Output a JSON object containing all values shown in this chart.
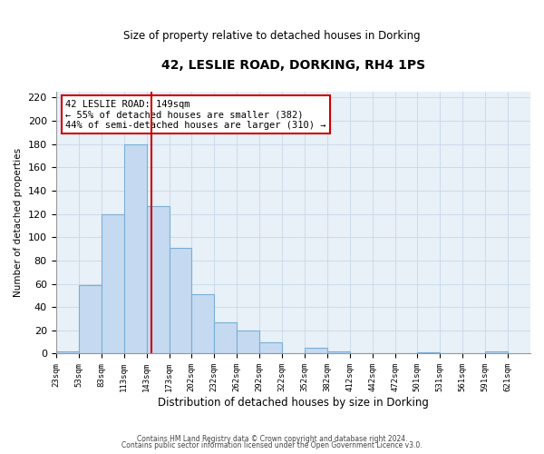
{
  "title": "42, LESLIE ROAD, DORKING, RH4 1PS",
  "subtitle": "Size of property relative to detached houses in Dorking",
  "xlabel": "Distribution of detached houses by size in Dorking",
  "ylabel": "Number of detached properties",
  "bar_left_edges": [
    23,
    53,
    83,
    113,
    143,
    173,
    202,
    232,
    262,
    292,
    322,
    352,
    382,
    412,
    442,
    472,
    501,
    531,
    561,
    591
  ],
  "bar_widths": [
    30,
    30,
    30,
    30,
    30,
    29,
    30,
    30,
    30,
    30,
    30,
    30,
    30,
    30,
    30,
    29,
    30,
    30,
    30,
    30
  ],
  "bar_heights": [
    2,
    59,
    120,
    180,
    127,
    91,
    51,
    27,
    20,
    10,
    0,
    5,
    2,
    0,
    0,
    0,
    1,
    0,
    0,
    2
  ],
  "bar_color": "#c5daf0",
  "bar_edgecolor": "#7aaed6",
  "tick_labels": [
    "23sqm",
    "53sqm",
    "83sqm",
    "113sqm",
    "143sqm",
    "173sqm",
    "202sqm",
    "232sqm",
    "262sqm",
    "292sqm",
    "322sqm",
    "352sqm",
    "382sqm",
    "412sqm",
    "442sqm",
    "472sqm",
    "501sqm",
    "531sqm",
    "561sqm",
    "591sqm",
    "621sqm"
  ],
  "tick_positions": [
    23,
    53,
    83,
    113,
    143,
    173,
    202,
    232,
    262,
    292,
    322,
    352,
    382,
    412,
    442,
    472,
    501,
    531,
    561,
    591,
    621
  ],
  "vline_x": 149,
  "vline_color": "#cc0000",
  "xlim": [
    23,
    651
  ],
  "ylim": [
    0,
    225
  ],
  "yticks": [
    0,
    20,
    40,
    60,
    80,
    100,
    120,
    140,
    160,
    180,
    200,
    220
  ],
  "annotation_title": "42 LESLIE ROAD: 149sqm",
  "annotation_line1": "← 55% of detached houses are smaller (382)",
  "annotation_line2": "44% of semi-detached houses are larger (310) →",
  "annotation_box_edgecolor": "#cc0000",
  "footer_line1": "Contains HM Land Registry data © Crown copyright and database right 2024.",
  "footer_line2": "Contains public sector information licensed under the Open Government Licence v3.0.",
  "grid_color": "#c8d8e8",
  "background_color": "#e8f0f8"
}
